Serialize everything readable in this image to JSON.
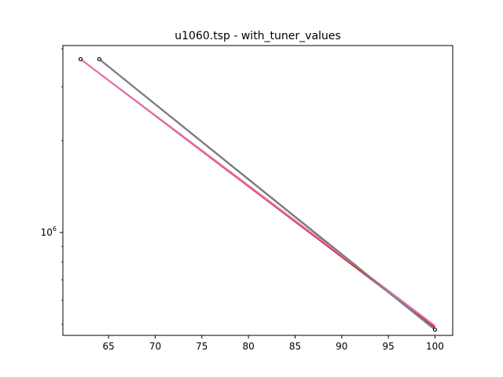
{
  "chart_data": {
    "type": "line",
    "title": "u1060.tsp - with_tuner_values",
    "xlabel": "",
    "ylabel": "",
    "y_scale": "log",
    "xlim": [
      60.1,
      101.9
    ],
    "ylim": [
      460000,
      4100000
    ],
    "x_ticks": [
      65,
      70,
      75,
      80,
      85,
      90,
      95,
      100
    ],
    "x_tick_labels": [
      "65",
      "70",
      "75",
      "80",
      "85",
      "90",
      "95",
      "100"
    ],
    "y_ticks": [
      1000000
    ],
    "y_tick_labels": [
      "10^6"
    ],
    "grid": false,
    "legend": "none",
    "series": [
      {
        "color": "#1f77b4",
        "x": [
          64,
          100
        ],
        "y": [
          3700000,
          480000
        ]
      },
      {
        "color": "#ff7f0e",
        "x": [
          62,
          100
        ],
        "y": [
          3700000,
          490000
        ]
      },
      {
        "color": "#2ca02c",
        "x": [
          64,
          100
        ],
        "y": [
          3700000,
          482000
        ]
      },
      {
        "color": "#d62728",
        "x": [
          62,
          100
        ],
        "y": [
          3700000,
          488000
        ]
      },
      {
        "color": "#9467bd",
        "x": [
          64,
          100
        ],
        "y": [
          3700000,
          482000
        ]
      },
      {
        "color": "#8c564b",
        "x": [
          64,
          100
        ],
        "y": [
          3700000,
          481000
        ]
      },
      {
        "color": "#e377c2",
        "x": [
          62,
          100
        ],
        "y": [
          3700000,
          495000
        ]
      },
      {
        "color": "#7f7f7f",
        "x": [
          64,
          100
        ],
        "y": [
          3700000,
          480000
        ]
      }
    ],
    "markers": [
      {
        "x": 62,
        "y": 3700000
      },
      {
        "x": 64,
        "y": 3700000
      },
      {
        "x": 100,
        "y": 480000
      }
    ]
  }
}
